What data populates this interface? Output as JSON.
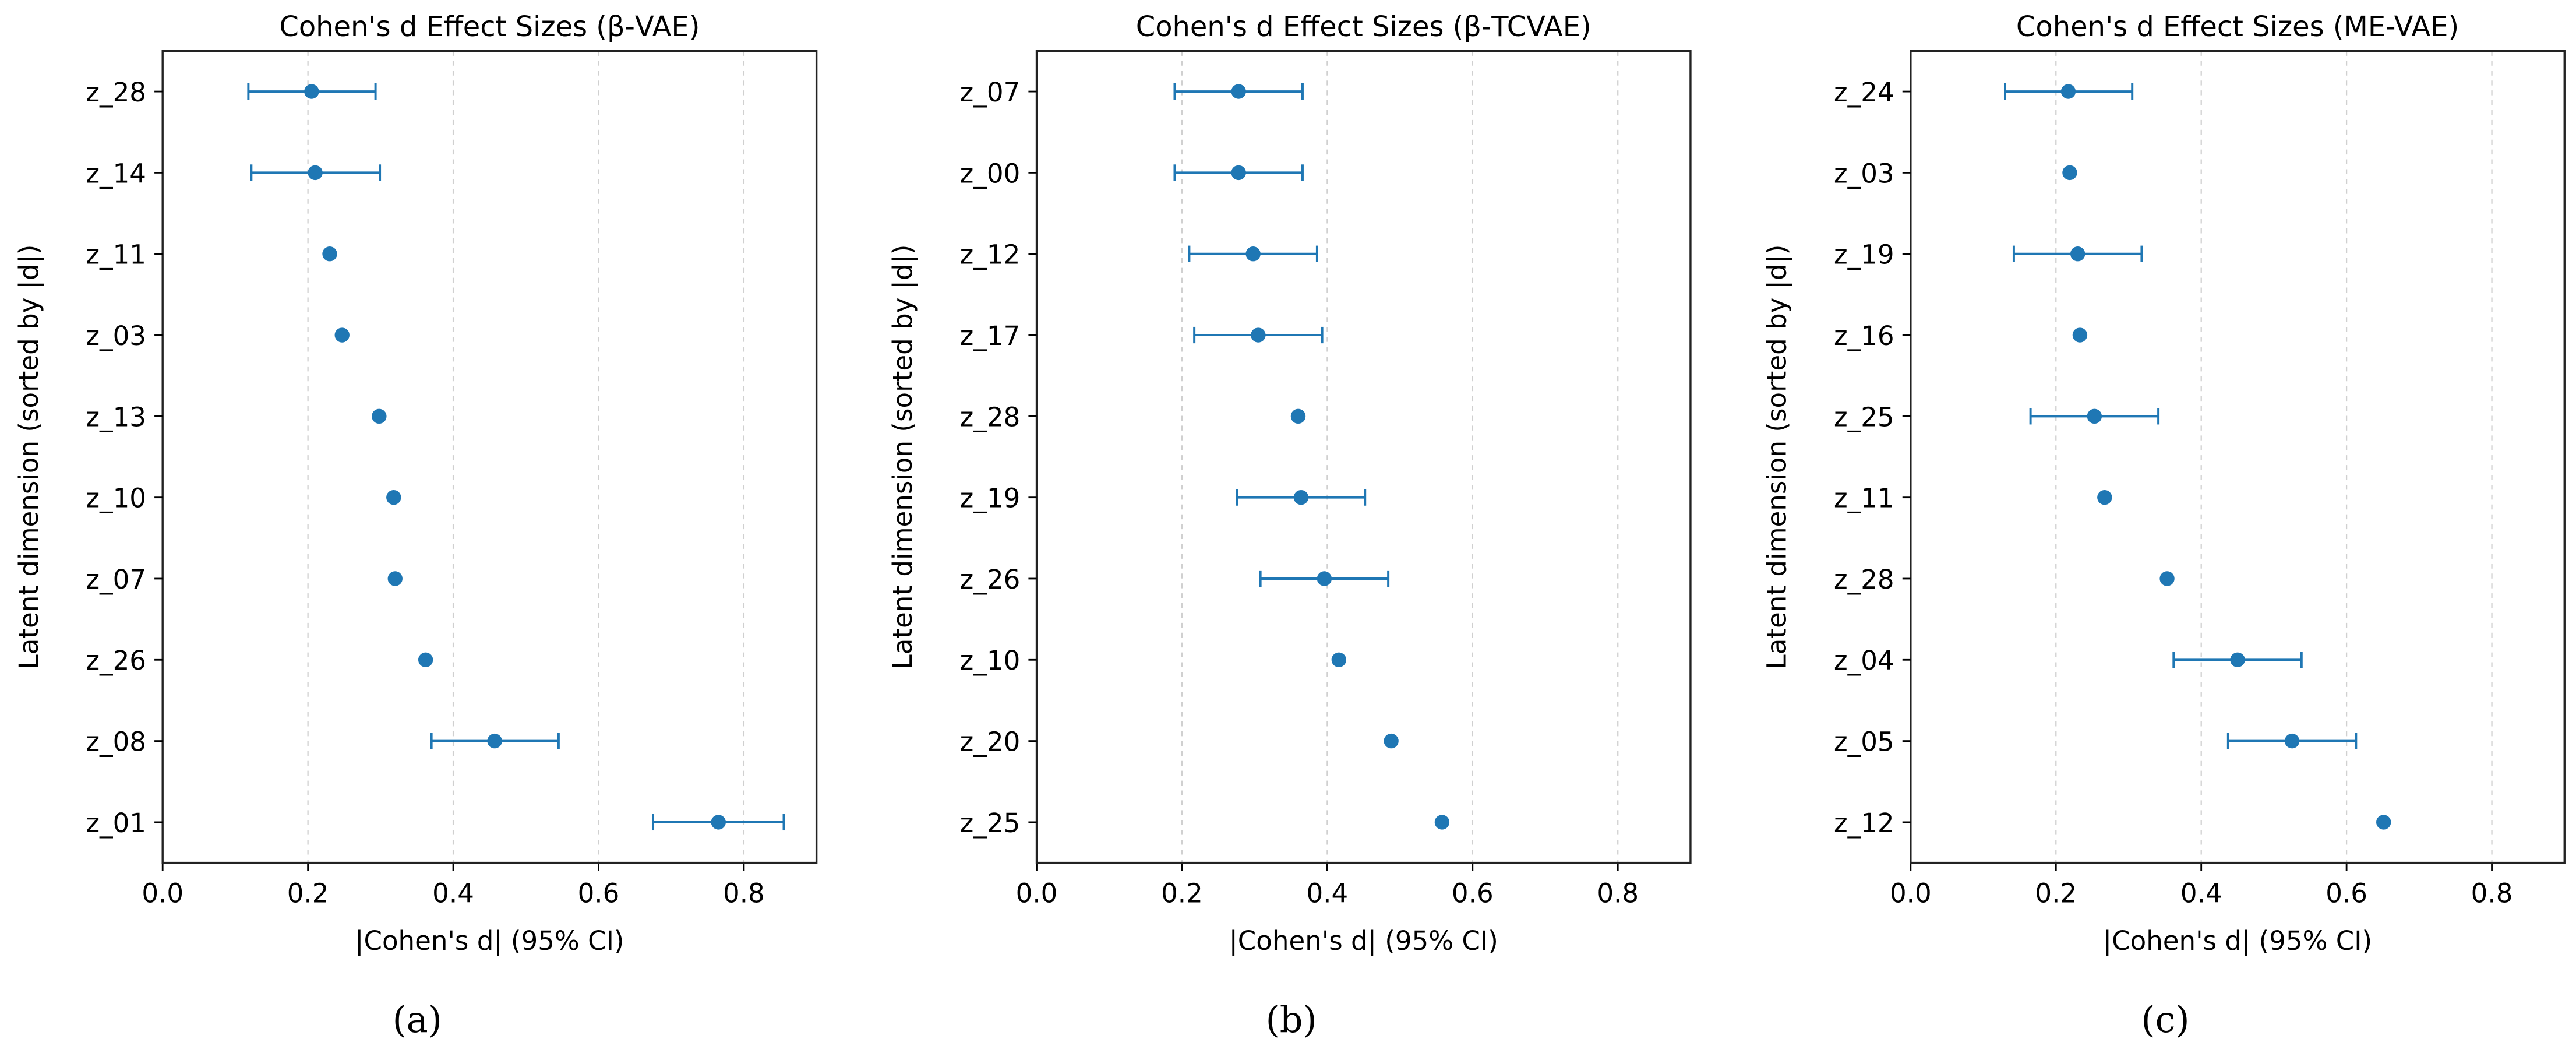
{
  "chart_data": [
    {
      "type": "scatter",
      "subtitle": "(a)",
      "title": "Cohen's d Effect Sizes (β-VAE)",
      "xlabel": "|Cohen's d| (95% CI)",
      "ylabel": "Latent dimension (sorted by |d|)",
      "xlim": [
        0,
        0.9
      ],
      "xticks": [
        "0.0",
        "0.2",
        "0.4",
        "0.6",
        "0.8"
      ],
      "grid": "x dashed",
      "categories": [
        "z_28",
        "z_14",
        "z_11",
        "z_03",
        "z_13",
        "z_10",
        "z_07",
        "z_26",
        "z_08",
        "z_01"
      ],
      "values": [
        0.205,
        0.21,
        0.23,
        0.247,
        0.298,
        0.318,
        0.32,
        0.362,
        0.457,
        0.765
      ],
      "ci": [
        [
          0.118,
          0.293
        ],
        [
          0.122,
          0.299
        ],
        null,
        null,
        null,
        null,
        null,
        null,
        [
          0.37,
          0.545
        ],
        [
          0.675,
          0.855
        ]
      ]
    },
    {
      "type": "scatter",
      "subtitle": "(b)",
      "title": "Cohen's d Effect Sizes (β-TCVAE)",
      "xlabel": "|Cohen's d| (95% CI)",
      "ylabel": "Latent dimension (sorted by |d|)",
      "xlim": [
        0,
        0.9
      ],
      "xticks": [
        "0.0",
        "0.2",
        "0.4",
        "0.6",
        "0.8"
      ],
      "grid": "x dashed",
      "categories": [
        "z_07",
        "z_00",
        "z_12",
        "z_17",
        "z_28",
        "z_19",
        "z_26",
        "z_10",
        "z_20",
        "z_25"
      ],
      "values": [
        0.278,
        0.278,
        0.298,
        0.305,
        0.36,
        0.364,
        0.396,
        0.416,
        0.488,
        0.558
      ],
      "ci": [
        [
          0.19,
          0.366
        ],
        [
          0.19,
          0.366
        ],
        [
          0.21,
          0.386
        ],
        [
          0.217,
          0.393
        ],
        null,
        [
          0.276,
          0.452
        ],
        [
          0.308,
          0.484
        ],
        null,
        null,
        null
      ]
    },
    {
      "type": "scatter",
      "subtitle": "(c)",
      "title": "Cohen's d Effect Sizes (ME-VAE)",
      "xlabel": "|Cohen's d| (95% CI)",
      "ylabel": "Latent dimension (sorted by |d|)",
      "xlim": [
        0,
        0.9
      ],
      "xticks": [
        "0.0",
        "0.2",
        "0.4",
        "0.6",
        "0.8"
      ],
      "grid": "x dashed",
      "categories": [
        "z_24",
        "z_03",
        "z_19",
        "z_16",
        "z_25",
        "z_11",
        "z_28",
        "z_04",
        "z_05",
        "z_12"
      ],
      "values": [
        0.217,
        0.219,
        0.23,
        0.233,
        0.253,
        0.267,
        0.353,
        0.45,
        0.525,
        0.651
      ],
      "ci": [
        [
          0.13,
          0.305
        ],
        null,
        [
          0.142,
          0.318
        ],
        null,
        [
          0.165,
          0.341
        ],
        null,
        null,
        [
          0.362,
          0.538
        ],
        [
          0.437,
          0.613
        ],
        null
      ]
    }
  ],
  "colors": {
    "marker": "#1f77b4",
    "grid": "#d0d0d0",
    "axis": "#000000"
  }
}
